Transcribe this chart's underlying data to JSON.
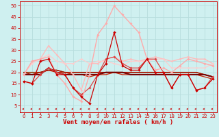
{
  "xlabel": "Vent moyen/en rafales ( km/h )",
  "bg_color": "#cff0f0",
  "grid_color": "#b8dede",
  "x_ticks": [
    0,
    1,
    2,
    3,
    4,
    5,
    6,
    7,
    8,
    9,
    10,
    11,
    12,
    13,
    14,
    15,
    16,
    17,
    18,
    19,
    20,
    21,
    22,
    23
  ],
  "y_ticks": [
    5,
    10,
    15,
    20,
    25,
    30,
    35,
    40,
    45,
    50
  ],
  "ylim": [
    2,
    52
  ],
  "xlim": [
    -0.5,
    23.5
  ],
  "series": [
    {
      "y": [
        16,
        15,
        25,
        26,
        19,
        19,
        13,
        9,
        6,
        19,
        24,
        38,
        23,
        21,
        21,
        26,
        20,
        20,
        13,
        19,
        19,
        12,
        13,
        17
      ],
      "color": "#cc0000",
      "lw": 0.9,
      "marker": "D",
      "ms": 2.0,
      "zorder": 6
    },
    {
      "y": [
        19,
        19,
        19,
        22,
        20,
        19,
        19,
        19,
        19,
        19,
        20,
        20,
        20,
        19,
        19,
        19,
        19,
        19,
        19,
        19,
        19,
        19,
        19,
        18
      ],
      "color": "#770000",
      "lw": 1.4,
      "marker": null,
      "ms": 0,
      "zorder": 4
    },
    {
      "y": [
        20,
        20,
        20,
        21,
        21,
        20,
        20,
        20,
        20,
        20,
        20,
        20,
        20,
        20,
        20,
        20,
        20,
        20,
        20,
        20,
        20,
        20,
        19,
        18
      ],
      "color": "#993300",
      "lw": 1.1,
      "marker": null,
      "ms": 0,
      "zorder": 3
    },
    {
      "y": [
        19,
        19,
        20,
        21,
        20,
        20,
        19,
        19,
        18,
        19,
        19,
        20,
        19,
        19,
        19,
        19,
        19,
        19,
        19,
        19,
        19,
        19,
        18,
        17
      ],
      "color": "#cc2200",
      "lw": 0.9,
      "marker": null,
      "ms": 0,
      "zorder": 3
    },
    {
      "y": [
        20,
        19,
        20,
        21,
        21,
        20,
        20,
        20,
        20,
        20,
        20,
        20,
        20,
        20,
        20,
        20,
        20,
        20,
        20,
        20,
        20,
        20,
        19,
        18
      ],
      "color": "#aa1100",
      "lw": 0.9,
      "marker": null,
      "ms": 0,
      "zorder": 3
    },
    {
      "y": [
        16,
        15,
        19,
        22,
        20,
        19,
        13,
        10,
        13,
        19,
        26,
        27,
        24,
        22,
        22,
        26,
        26,
        20,
        13,
        19,
        19,
        12,
        13,
        18
      ],
      "color": "#dd4444",
      "lw": 0.9,
      "marker": "D",
      "ms": 1.8,
      "zorder": 5
    },
    {
      "y": [
        19,
        25,
        26,
        27,
        19,
        15,
        9,
        7,
        19,
        37,
        42,
        50,
        46,
        42,
        38,
        26,
        21,
        22,
        20,
        23,
        26,
        25,
        24,
        23
      ],
      "color": "#ffaaaa",
      "lw": 1.0,
      "marker": "D",
      "ms": 1.8,
      "zorder": 5
    },
    {
      "y": [
        19,
        25,
        26,
        32,
        28,
        24,
        19,
        12,
        24,
        24,
        26,
        27,
        25,
        26,
        25,
        26,
        27,
        26,
        25,
        26,
        27,
        26,
        26,
        24
      ],
      "color": "#ffbbbb",
      "lw": 1.0,
      "marker": "D",
      "ms": 1.5,
      "zorder": 4
    },
    {
      "y": [
        19,
        24,
        26,
        28,
        25,
        24,
        24,
        26,
        24,
        25,
        25,
        24,
        23,
        25,
        25,
        25,
        26,
        26,
        22,
        22,
        22,
        22,
        22,
        24
      ],
      "color": "#ffcccc",
      "lw": 0.9,
      "marker": "D",
      "ms": 1.4,
      "zorder": 4
    }
  ],
  "arrow_color": "#cc0000",
  "label_color": "#cc0000",
  "tick_color": "#cc0000",
  "spine_color": "#cc0000",
  "tick_fontsize": 5.0,
  "xlabel_fontsize": 6.5
}
